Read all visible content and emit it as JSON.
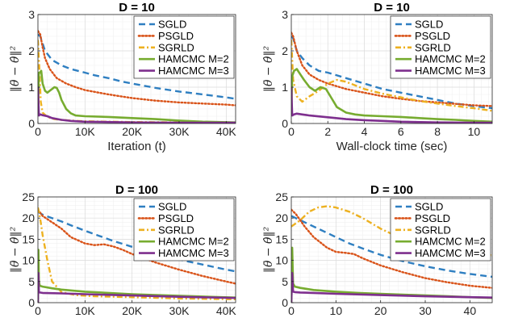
{
  "legend_entries": [
    "SGLD",
    "PSGLD",
    "SGRLD",
    "HAMCMC M=2",
    "HAMCMC M=3"
  ],
  "series_colors": {
    "SGLD": "#2f7fc1",
    "PSGLD": "#d95319",
    "SGRLD": "#edb120",
    "HAMCMC M=2": "#77ac30",
    "HAMCMC M=3": "#7e2f8e"
  },
  "series_styles": {
    "SGLD": "dashed",
    "PSGLD": "dotted",
    "SGRLD": "dash-dot",
    "HAMCMC M=2": "solid",
    "HAMCMC M=3": "solid"
  },
  "chart_data": [
    {
      "type": "line",
      "title": "D = 10",
      "xlabel": "Iteration (t)",
      "ylabel": "‖θ̄ − θ̂‖²",
      "xlim": [
        0,
        42000
      ],
      "ylim": [
        0,
        3
      ],
      "xticks": [
        0,
        10000,
        20000,
        30000,
        40000
      ],
      "xtick_labels": [
        "0",
        "10K",
        "20K",
        "30K",
        "40K"
      ],
      "yticks": [
        0,
        1,
        2,
        3
      ],
      "ytick_labels": [
        "0",
        "1",
        "2",
        "3"
      ],
      "grid": true,
      "legend_position": "top-right",
      "series": [
        {
          "name": "SGLD",
          "x": [
            0,
            500,
            1500,
            3000,
            5000,
            7000,
            10000,
            12000,
            15000,
            18000,
            20000,
            25000,
            30000,
            35000,
            40000,
            42000
          ],
          "y": [
            2.45,
            2.4,
            2.0,
            1.75,
            1.6,
            1.5,
            1.4,
            1.33,
            1.25,
            1.15,
            1.1,
            0.98,
            0.88,
            0.8,
            0.72,
            0.68
          ]
        },
        {
          "name": "PSGLD",
          "x": [
            0,
            500,
            1000,
            1500,
            2500,
            4000,
            6000,
            8000,
            10000,
            15000,
            20000,
            25000,
            30000,
            35000,
            40000,
            42000
          ],
          "y": [
            2.55,
            2.45,
            2.1,
            1.8,
            1.5,
            1.25,
            1.1,
            1.0,
            0.92,
            0.8,
            0.7,
            0.63,
            0.58,
            0.55,
            0.52,
            0.5
          ]
        },
        {
          "name": "SGRLD",
          "x": [
            0,
            300,
            600,
            1000,
            2000,
            3500,
            5000,
            7000,
            10000,
            15000,
            20000,
            30000,
            42000
          ],
          "y": [
            2.3,
            1.5,
            0.6,
            0.3,
            0.18,
            0.12,
            0.1,
            0.08,
            0.06,
            0.05,
            0.04,
            0.03,
            0.02
          ]
        },
        {
          "name": "HAMCMC M=2",
          "x": [
            0,
            200,
            400,
            700,
            1000,
            1500,
            2000,
            2500,
            3000,
            3500,
            4000,
            4500,
            5000,
            6000,
            7000,
            8000,
            10000,
            15000,
            20000,
            25000,
            30000,
            35000,
            42000
          ],
          "y": [
            0.3,
            1.4,
            1.4,
            1.45,
            1.1,
            0.9,
            0.85,
            0.9,
            0.95,
            1.0,
            0.98,
            0.85,
            0.65,
            0.4,
            0.28,
            0.22,
            0.2,
            0.18,
            0.15,
            0.12,
            0.08,
            0.05,
            0.03
          ]
        },
        {
          "name": "HAMCMC M=3",
          "x": [
            0,
            200,
            500,
            1000,
            2000,
            3000,
            5000,
            7000,
            10000,
            15000,
            20000,
            30000,
            42000
          ],
          "y": [
            1.0,
            0.22,
            0.25,
            0.23,
            0.2,
            0.15,
            0.1,
            0.07,
            0.05,
            0.04,
            0.03,
            0.02,
            0.02
          ]
        }
      ]
    },
    {
      "type": "line",
      "title": "D = 10",
      "xlabel": "Wall-clock time (sec)",
      "ylabel": "‖θ̄ − θ̂‖²",
      "xlim": [
        0,
        11
      ],
      "ylim": [
        0,
        3
      ],
      "xticks": [
        0,
        2,
        4,
        6,
        8,
        10
      ],
      "xtick_labels": [
        "0",
        "2",
        "4",
        "6",
        "8",
        "10"
      ],
      "yticks": [
        0,
        1,
        2,
        3
      ],
      "ytick_labels": [
        "0",
        "1",
        "2",
        "3"
      ],
      "grid": true,
      "legend_position": "top-right",
      "series": [
        {
          "name": "SGLD",
          "x": [
            0,
            0.1,
            0.3,
            0.6,
            1,
            1.5,
            2,
            3,
            4,
            5,
            6,
            7,
            8,
            9,
            10,
            11
          ],
          "y": [
            2.4,
            2.35,
            2.0,
            1.8,
            1.6,
            1.45,
            1.4,
            1.25,
            1.1,
            0.95,
            0.85,
            0.75,
            0.65,
            0.55,
            0.48,
            0.42
          ]
        },
        {
          "name": "PSGLD",
          "x": [
            0,
            0.1,
            0.3,
            0.6,
            1,
            1.5,
            2,
            3,
            4,
            5,
            6,
            7,
            8,
            9,
            10,
            11
          ],
          "y": [
            2.5,
            2.4,
            2.0,
            1.6,
            1.35,
            1.2,
            1.1,
            0.95,
            0.85,
            0.75,
            0.68,
            0.62,
            0.58,
            0.54,
            0.5,
            0.48
          ]
        },
        {
          "name": "SGRLD",
          "x": [
            0,
            0.1,
            0.3,
            0.6,
            1.0,
            1.5,
            2.0,
            2.5,
            3.0,
            3.5,
            4.0,
            5,
            6,
            7,
            8,
            9,
            10,
            11
          ],
          "y": [
            2.3,
            1.2,
            0.75,
            0.6,
            0.75,
            0.9,
            1.1,
            1.2,
            1.15,
            1.05,
            0.95,
            0.82,
            0.72,
            0.62,
            0.55,
            0.48,
            0.42,
            0.35
          ]
        },
        {
          "name": "HAMCMC M=2",
          "x": [
            0,
            0.05,
            0.15,
            0.3,
            0.5,
            0.7,
            1.0,
            1.3,
            1.6,
            1.9,
            2.2,
            2.5,
            3.0,
            3.5,
            4,
            5,
            6,
            7,
            8,
            9,
            10,
            11
          ],
          "y": [
            0.3,
            1.3,
            1.45,
            1.5,
            1.35,
            1.2,
            1.0,
            0.9,
            1.0,
            0.95,
            0.7,
            0.45,
            0.3,
            0.25,
            0.22,
            0.2,
            0.18,
            0.15,
            0.12,
            0.1,
            0.07,
            0.05
          ]
        },
        {
          "name": "HAMCMC M=3",
          "x": [
            0,
            0.05,
            0.15,
            0.3,
            0.6,
            1,
            2,
            3,
            4,
            5,
            6,
            8,
            10,
            11
          ],
          "y": [
            1.0,
            0.22,
            0.25,
            0.27,
            0.25,
            0.22,
            0.17,
            0.12,
            0.09,
            0.07,
            0.05,
            0.03,
            0.02,
            0.02
          ]
        }
      ]
    },
    {
      "type": "line",
      "title": "D = 100",
      "xlabel": "Iteration (t)",
      "ylabel": "‖θ̄ − θ̂‖²",
      "xlim": [
        0,
        42000
      ],
      "ylim": [
        0,
        25
      ],
      "xticks": [
        0,
        10000,
        20000,
        30000,
        40000
      ],
      "xtick_labels": [
        "0",
        "10K",
        "20K",
        "30K",
        "40K"
      ],
      "yticks": [
        0,
        5,
        10,
        15,
        20,
        25
      ],
      "ytick_labels": [
        "0",
        "5",
        "10",
        "15",
        "20",
        "25"
      ],
      "grid": true,
      "legend_position": "top-right",
      "series": [
        {
          "name": "SGLD",
          "x": [
            0,
            1000,
            3000,
            5000,
            7000,
            10000,
            13000,
            16000,
            20000,
            25000,
            30000,
            35000,
            40000,
            42000
          ],
          "y": [
            21.5,
            20.8,
            20.0,
            19.2,
            18.3,
            17.0,
            15.8,
            14.6,
            13.2,
            11.6,
            10.2,
            9.0,
            7.8,
            7.4
          ]
        },
        {
          "name": "PSGLD",
          "x": [
            0,
            1000,
            3000,
            5000,
            7000,
            10000,
            12000,
            14000,
            16000,
            18000,
            20000,
            25000,
            30000,
            35000,
            40000,
            42000
          ],
          "y": [
            22.0,
            20.5,
            19.0,
            17.5,
            15.5,
            14.0,
            13.6,
            13.8,
            13.3,
            12.5,
            11.5,
            9.5,
            7.8,
            6.3,
            5.0,
            4.5
          ]
        },
        {
          "name": "SGRLD",
          "x": [
            0,
            300,
            600,
            1000,
            2000,
            3000,
            5000,
            8000,
            12000,
            20000,
            30000,
            42000
          ],
          "y": [
            22.5,
            21.0,
            19.0,
            16.0,
            10.0,
            5.0,
            2.5,
            1.8,
            1.5,
            1.3,
            1.0,
            0.8
          ]
        },
        {
          "name": "HAMCMC M=2",
          "x": [
            0,
            100,
            200,
            400,
            1000,
            3000,
            5000,
            10000,
            15000,
            20000,
            30000,
            42000
          ],
          "y": [
            0,
            12.5,
            5.0,
            4.0,
            3.8,
            3.4,
            3.1,
            2.6,
            2.3,
            2.0,
            1.6,
            1.2
          ]
        },
        {
          "name": "HAMCMC M=3",
          "x": [
            0,
            100,
            200,
            400,
            1000,
            5000,
            10000,
            20000,
            30000,
            42000
          ],
          "y": [
            0,
            7.0,
            2.6,
            2.4,
            2.3,
            2.2,
            2.0,
            1.7,
            1.4,
            1.1
          ]
        }
      ]
    },
    {
      "type": "line",
      "title": "D = 100",
      "xlabel": "Wall-clock time (sec)",
      "ylabel": "‖θ̄ − θ̂‖²",
      "xlim": [
        0,
        45
      ],
      "ylim": [
        0,
        25
      ],
      "xticks": [
        0,
        10,
        20,
        30,
        40
      ],
      "xtick_labels": [
        "0",
        "10",
        "20",
        "30",
        "40"
      ],
      "yticks": [
        0,
        5,
        10,
        15,
        20,
        25
      ],
      "ytick_labels": [
        "0",
        "5",
        "10",
        "15",
        "20",
        "25"
      ],
      "grid": true,
      "legend_position": "top-right",
      "series": [
        {
          "name": "SGLD",
          "x": [
            0,
            1,
            3,
            5,
            8,
            10,
            13,
            16,
            20,
            25,
            30,
            35,
            40,
            45
          ],
          "y": [
            20.5,
            20.0,
            19.0,
            18.0,
            16.5,
            15.5,
            14.0,
            12.8,
            11.3,
            9.8,
            8.6,
            7.6,
            6.8,
            6.1
          ]
        },
        {
          "name": "PSGLD",
          "x": [
            0,
            1,
            3,
            5,
            8,
            10,
            12,
            14,
            16,
            20,
            25,
            30,
            35,
            40,
            45
          ],
          "y": [
            22.0,
            21.0,
            18.0,
            15.5,
            13.0,
            12.0,
            11.8,
            11.5,
            10.5,
            8.8,
            7.2,
            5.8,
            4.8,
            4.0,
            3.5
          ]
        },
        {
          "name": "SGRLD",
          "x": [
            0,
            2,
            4,
            6,
            8,
            10,
            13,
            16,
            20,
            25,
            30,
            35,
            40,
            45
          ],
          "y": [
            18.0,
            19.5,
            21.5,
            22.5,
            22.8,
            22.5,
            21.5,
            20.0,
            17.5,
            15.0,
            13.5,
            12.5,
            11.8,
            11.2
          ]
        },
        {
          "name": "HAMCMC M=2",
          "x": [
            0,
            0.2,
            0.4,
            0.8,
            2,
            5,
            10,
            15,
            20,
            25,
            30,
            35,
            40,
            45
          ],
          "y": [
            0,
            13.0,
            4.5,
            3.8,
            3.5,
            3.0,
            2.6,
            2.3,
            2.1,
            1.9,
            1.7,
            1.5,
            1.3,
            1.1
          ]
        },
        {
          "name": "HAMCMC M=3",
          "x": [
            0,
            0.2,
            0.4,
            0.8,
            2,
            5,
            10,
            20,
            30,
            40,
            45
          ],
          "y": [
            0,
            7.0,
            2.6,
            2.5,
            2.4,
            2.3,
            2.1,
            1.8,
            1.5,
            1.3,
            1.2
          ]
        }
      ]
    }
  ]
}
